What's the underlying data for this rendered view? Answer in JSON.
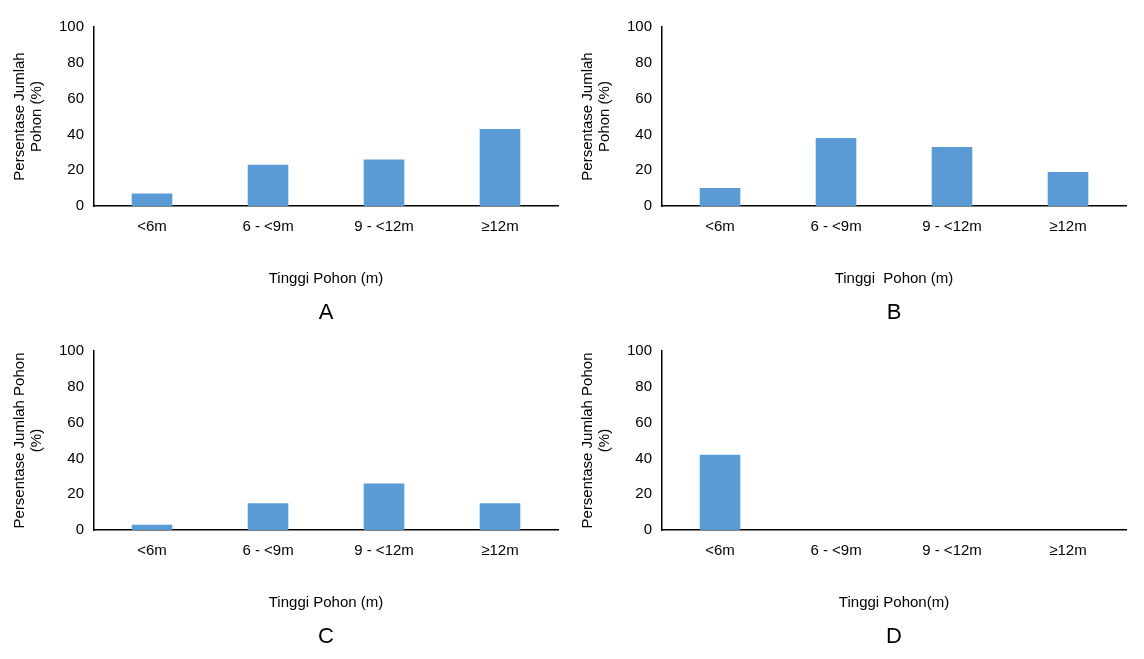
{
  "chart_data": [
    {
      "type": "bar",
      "categories": [
        "<6m",
        "6 - <9m",
        "9 - <12m",
        "≥12m"
      ],
      "values": [
        7,
        23,
        26,
        43
      ],
      "color": "#5b9bd5",
      "ylim": [
        0,
        100
      ],
      "yticks": [
        0,
        20,
        40,
        60,
        80,
        100
      ],
      "xlabel": "Tinggi Pohon (m)",
      "ylabel": "Persentase Jumlah\nPohon (%)",
      "annotations": [
        "A"
      ],
      "grid": false
    },
    {
      "type": "bar",
      "categories": [
        "<6m",
        "6 - <9m",
        "9 - <12m",
        "≥12m"
      ],
      "values": [
        10,
        38,
        33,
        19
      ],
      "color": "#5b9bd5",
      "ylim": [
        0,
        100
      ],
      "yticks": [
        0,
        20,
        40,
        60,
        80,
        100
      ],
      "xlabel": "Tinggi  Pohon (m)",
      "ylabel": "Persentase Jumlah\nPohon (%)",
      "annotations": [
        "B"
      ],
      "grid": false
    },
    {
      "type": "bar",
      "categories": [
        "<6m",
        "6 - <9m",
        "9 - <12m",
        "≥12m"
      ],
      "values": [
        3,
        15,
        26,
        15
      ],
      "color": "#5b9bd5",
      "ylim": [
        0,
        100
      ],
      "yticks": [
        0,
        20,
        40,
        60,
        80,
        100
      ],
      "xlabel": "Tinggi Pohon (m)",
      "ylabel": "Persentase Jumlah Pohon\n(%)",
      "annotations": [
        "C"
      ],
      "grid": false
    },
    {
      "type": "bar",
      "categories": [
        "<6m",
        "6 - <9m",
        "9 - <12m",
        "≥12m"
      ],
      "values": [
        42,
        0,
        0,
        0
      ],
      "color": "#5b9bd5",
      "ylim": [
        0,
        100
      ],
      "yticks": [
        0,
        20,
        40,
        60,
        80,
        100
      ],
      "xlabel": "Tinggi Pohon(m)",
      "ylabel": "Persentase Jumlah Pohon\n(%)",
      "annotations": [
        "D"
      ],
      "grid": false
    }
  ]
}
